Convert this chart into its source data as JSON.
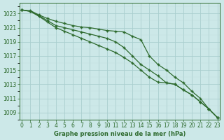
{
  "xlabel": "Graphe pression niveau de la mer (hPa)",
  "x": [
    0,
    1,
    2,
    3,
    4,
    5,
    6,
    7,
    8,
    9,
    10,
    11,
    12,
    13,
    14,
    15,
    16,
    17,
    18,
    19,
    20,
    21,
    22,
    23
  ],
  "line1": [
    1023.5,
    1023.4,
    1022.8,
    1022.3,
    1021.9,
    1021.6,
    1021.3,
    1021.1,
    1021.0,
    1020.8,
    1020.6,
    1020.5,
    1020.4,
    1019.8,
    1019.3,
    1017.0,
    1015.8,
    1015.0,
    1014.0,
    1013.2,
    1012.0,
    1011.0,
    1009.5,
    1008.3
  ],
  "line2": [
    1023.5,
    1023.3,
    1022.7,
    1022.0,
    1021.3,
    1021.0,
    1020.7,
    1020.4,
    1020.1,
    1019.8,
    1019.5,
    1019.0,
    1018.2,
    1017.0,
    1015.8,
    1015.0,
    1014.2,
    1013.2,
    1013.0,
    1012.2,
    1011.5,
    1010.5,
    1009.5,
    1008.3
  ],
  "line3": [
    1023.5,
    1023.3,
    1022.6,
    1021.8,
    1021.0,
    1020.5,
    1020.0,
    1019.5,
    1019.0,
    1018.5,
    1018.0,
    1017.5,
    1016.8,
    1016.0,
    1015.0,
    1014.0,
    1013.3,
    1013.2,
    1013.0,
    1012.2,
    1011.5,
    1010.5,
    1009.5,
    1008.3
  ],
  "line_color": "#2d6a2d",
  "bg_color": "#cce8e8",
  "grid_color": "#aacece",
  "ylim": [
    1008,
    1024.5
  ],
  "ylim_bottom": 1008,
  "ylim_top": 1024.5,
  "yticks": [
    1009,
    1011,
    1013,
    1015,
    1017,
    1019,
    1021,
    1023
  ],
  "xticks": [
    0,
    1,
    2,
    3,
    4,
    5,
    6,
    7,
    8,
    9,
    10,
    11,
    12,
    13,
    14,
    15,
    16,
    17,
    18,
    19,
    20,
    21,
    22,
    23
  ],
  "marker": "+",
  "markersize": 3.5,
  "linewidth": 0.9,
  "tick_fontsize": 5.5,
  "xlabel_fontsize": 6.0
}
